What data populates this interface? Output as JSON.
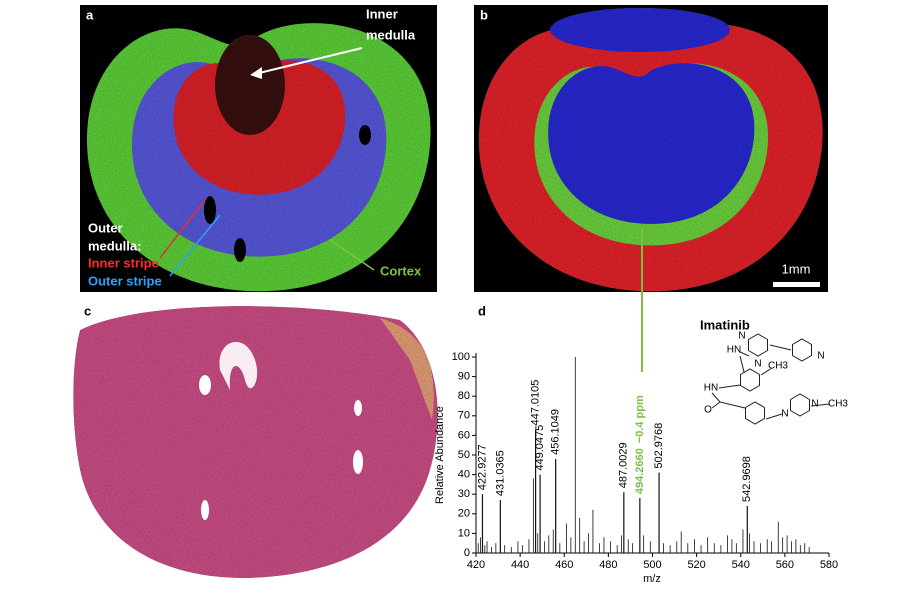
{
  "panels": {
    "a": {
      "letter": "a",
      "inner_medulla": [
        "Inner",
        "medulla"
      ],
      "outer_medulla": [
        "Outer",
        "medulla:"
      ],
      "inner_stripe": "Inner stripe",
      "outer_stripe": "Outer stripe",
      "cortex": "Cortex"
    },
    "b": {
      "letter": "b",
      "scale_bar": "1mm"
    },
    "c": {
      "letter": "c"
    },
    "d": {
      "letter": "d"
    }
  },
  "molecule": {
    "name": "Imatinib",
    "atoms": [
      "N",
      "N",
      "HN",
      "N",
      "HN",
      "O",
      "N",
      "N",
      "CH3",
      "CH3"
    ]
  },
  "chart_data": {
    "type": "stem",
    "y_label": "Relative Abundance",
    "x_label": "m/z",
    "xlim": [
      420,
      580
    ],
    "ylim": [
      0,
      100
    ],
    "xticks": [
      420,
      440,
      460,
      480,
      500,
      520,
      540,
      560,
      580
    ],
    "yticks": [
      0,
      10,
      20,
      30,
      40,
      50,
      60,
      70,
      80,
      90,
      100
    ],
    "color": "#111111",
    "peaks": {
      "x": [
        422.9277,
        431.0365,
        447.0105,
        449.0475,
        456.1049,
        487.0029,
        502.9768,
        542.9698
      ],
      "values": [
        30,
        27,
        63,
        40,
        48,
        31,
        41,
        24
      ]
    },
    "highlight_peak": {
      "x": 494.266,
      "x_label": "494.2660",
      "value": 28,
      "note": "−0.4 ppm",
      "color": "#7ac143"
    },
    "minor_peaks": {
      "x": [
        421,
        422,
        424,
        425,
        427,
        429,
        433,
        436,
        439,
        441,
        444,
        446,
        448,
        451,
        453,
        455,
        458,
        461,
        463,
        465,
        467,
        469,
        471,
        473,
        476,
        478,
        481,
        484,
        486,
        489,
        491,
        496,
        499,
        505,
        508,
        511,
        513,
        516,
        519,
        522,
        525,
        528,
        531,
        534,
        536,
        538,
        541,
        544,
        546,
        549,
        552,
        554,
        557,
        559,
        561,
        563,
        565,
        567,
        569,
        571
      ],
      "values": [
        5,
        8,
        4,
        6,
        3,
        5,
        4,
        3,
        6,
        4,
        7,
        38,
        10,
        6,
        9,
        12,
        5,
        15,
        8,
        100,
        18,
        6,
        10,
        22,
        5,
        8,
        6,
        4,
        9,
        7,
        5,
        9,
        6,
        5,
        4,
        6,
        11,
        5,
        7,
        4,
        8,
        5,
        4,
        9,
        7,
        5,
        12,
        10,
        6,
        5,
        7,
        6,
        16,
        8,
        9,
        6,
        7,
        4,
        5,
        3
      ]
    }
  }
}
